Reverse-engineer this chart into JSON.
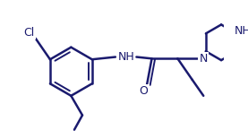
{
  "bg_color": "#ffffff",
  "line_color": "#1a1a6e",
  "line_width": 1.8,
  "figsize": [
    2.77,
    1.55
  ],
  "dpi": 100,
  "xlim": [
    0,
    277
  ],
  "ylim": [
    0,
    155
  ]
}
